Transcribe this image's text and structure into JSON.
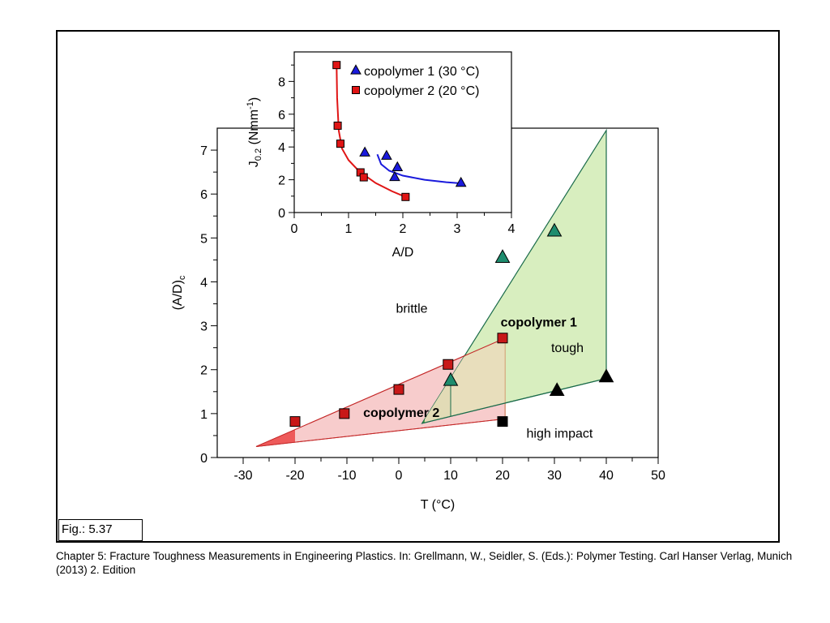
{
  "figure_label": "Fig.: 5.37",
  "caption": "Chapter 5: Fracture Toughness Measurements in Engineering Plastics. In: Grellmann, W., Seidler, S. (Eds.): Polymer Testing. Carl Hanser Verlag, Munich (2013) 2. Edition",
  "colors": {
    "copolymer1_fill": "#d8eebf",
    "copolymer1_dark_fill": "#5cb84a",
    "copolymer1_stroke": "#1a6b4a",
    "copolymer1_marker": "#1e8c6e",
    "copolymer2_fill": "#f7cccc",
    "copolymer2_dark_fill": "#ee5a5a",
    "copolymer2_stroke": "#c42828",
    "copolymer2_marker": "#c81818",
    "overlap_fill": "#e9dcbc",
    "overlap_stroke": "#d49a70",
    "inset_series1": "#1a1adc",
    "inset_series2": "#e01515"
  },
  "chart_data": [
    {
      "type": "scatter",
      "id": "main",
      "xlabel": "T (°C)",
      "ylabel": "(A/D)",
      "ylabel_subscript": "c",
      "xlim": [
        -35,
        50
      ],
      "ylim": [
        0,
        7.5
      ],
      "xticks": [
        "-30",
        "-20",
        "-10",
        "0",
        "10",
        "20",
        "30",
        "40",
        "50"
      ],
      "yticks": [
        "0",
        "1",
        "2",
        "3",
        "4",
        "5",
        "6",
        "7"
      ],
      "region_labels": {
        "brittle": "brittle",
        "tough": "tough",
        "high_impact": "high impact",
        "copolymer1": "copolymer 1",
        "copolymer2": "copolymer 2"
      },
      "regions": [
        {
          "name": "copolymer 2 region",
          "polygon": [
            [
              -27.5,
              0.25
            ],
            [
              20.5,
              2.72
            ],
            [
              20.5,
              0.88
            ]
          ]
        },
        {
          "name": "copolymer 1 region",
          "polygon": [
            [
              4.5,
              0.78
            ],
            [
              40,
              7.45
            ],
            [
              40,
              1.8
            ]
          ]
        }
      ],
      "series": [
        {
          "name": "copolymer 1",
          "marker": "triangle",
          "x": [
            10,
            20,
            30
          ],
          "y": [
            1.75,
            4.55,
            5.15
          ]
        },
        {
          "name": "copolymer 1",
          "marker": "triangle-black",
          "x": [
            30.5,
            40
          ],
          "y": [
            1.52,
            1.83
          ]
        },
        {
          "name": "copolymer 2",
          "marker": "square",
          "x": [
            -20,
            -10.5,
            0,
            9.5,
            20
          ],
          "y": [
            0.82,
            1.0,
            1.55,
            2.12,
            2.72
          ]
        },
        {
          "name": "copolymer 2",
          "marker": "square-black",
          "x": [
            20
          ],
          "y": [
            0.82
          ]
        }
      ]
    },
    {
      "type": "line",
      "id": "inset",
      "xlabel": "A/D",
      "ylabel_main": "J",
      "ylabel_sub": "0.2",
      "ylabel_unit": " (Nmm",
      "ylabel_sup": "-1",
      "ylabel_close": ")",
      "xlim": [
        0,
        4
      ],
      "ylim": [
        0,
        9.8
      ],
      "xticks": [
        "0",
        "1",
        "2",
        "3",
        "4"
      ],
      "yticks": [
        "0",
        "2",
        "4",
        "6",
        "8"
      ],
      "series": [
        {
          "name": "copolymer 1 (30 °C)",
          "marker": "triangle",
          "x": [
            1.3,
            1.7,
            1.9,
            1.85,
            3.07
          ],
          "y": [
            3.65,
            3.45,
            2.75,
            2.15,
            1.8
          ],
          "fit": {
            "x": [
              1.53,
              1.6,
              1.75,
              2.0,
              2.4,
              2.8,
              3.07
            ],
            "y": [
              3.55,
              2.95,
              2.55,
              2.25,
              2.0,
              1.85,
              1.78
            ]
          }
        },
        {
          "name": "copolymer 2 (20 °C)",
          "marker": "square",
          "x": [
            0.78,
            0.8,
            0.85,
            1.22,
            1.28,
            2.05
          ],
          "y": [
            9.0,
            5.3,
            4.2,
            2.45,
            2.15,
            0.95
          ],
          "fit": {
            "x": [
              0.78,
              0.79,
              0.82,
              0.88,
              1.0,
              1.2,
              1.5,
              1.8,
              2.05
            ],
            "y": [
              9.0,
              7.0,
              5.0,
              3.9,
              3.2,
              2.5,
              1.8,
              1.3,
              0.95
            ]
          }
        }
      ]
    }
  ]
}
